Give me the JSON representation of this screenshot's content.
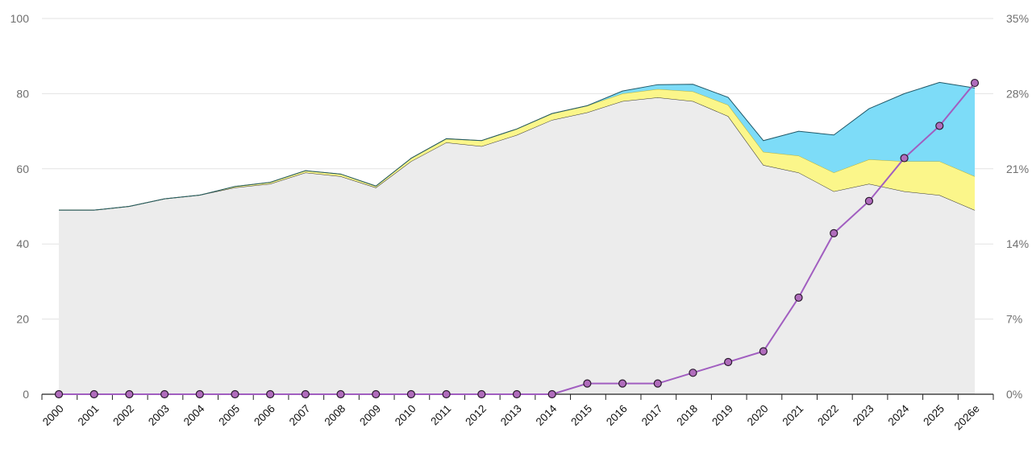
{
  "chart_data": {
    "type": "area",
    "categories": [
      "2000",
      "2001",
      "2002",
      "2003",
      "2004",
      "2005",
      "2006",
      "2007",
      "2008",
      "2009",
      "2010",
      "2011",
      "2012",
      "2013",
      "2014",
      "2015",
      "2016",
      "2017",
      "2018",
      "2019",
      "2020",
      "2021",
      "2022",
      "2023",
      "2024",
      "2025",
      "2026e"
    ],
    "y_left": {
      "ticks": [
        "0",
        "20",
        "40",
        "60",
        "80",
        "100"
      ],
      "ylim": [
        0,
        100
      ]
    },
    "y_right": {
      "ticks": [
        "0%",
        "7%",
        "14%",
        "21%",
        "28%",
        "35%"
      ],
      "ylim": [
        0,
        35
      ]
    },
    "grid": true,
    "series": [
      {
        "kind": "area",
        "color": "#ececec",
        "stroke": "#333333",
        "values": [
          49,
          49,
          50,
          52,
          53,
          55,
          56,
          59,
          58,
          55,
          62,
          67,
          66,
          69,
          73,
          75,
          78,
          79,
          78,
          74,
          61,
          59,
          54,
          56,
          54,
          53,
          49
        ]
      },
      {
        "kind": "area",
        "color": "#fbf68a",
        "stroke": "#b5b13a",
        "values": [
          0,
          0,
          0,
          0,
          0,
          0.3,
          0.4,
          0.5,
          0.6,
          0.4,
          0.8,
          1,
          1.5,
          1.6,
          1.7,
          1.8,
          2,
          2.2,
          2.6,
          3,
          3.5,
          4.5,
          5,
          6.5,
          8,
          9,
          9
        ]
      },
      {
        "kind": "area",
        "color": "#7ddcf8",
        "stroke": "#1f5868",
        "values": [
          0,
          0,
          0,
          0,
          0,
          0,
          0,
          0,
          0,
          0,
          0,
          0,
          0,
          0,
          0,
          0,
          0.7,
          1.2,
          1.9,
          2,
          3,
          6.5,
          10,
          13.5,
          18,
          21,
          23.5
        ]
      },
      {
        "kind": "line",
        "axis": "right",
        "color": "#a15ec0",
        "marker_color": "#b06cbc",
        "values": [
          0,
          0,
          0,
          0,
          0,
          0,
          0,
          0,
          0,
          0,
          0,
          0,
          0,
          0,
          0,
          1,
          1,
          1,
          2,
          3,
          4,
          9,
          15,
          18,
          22,
          25,
          29
        ]
      }
    ]
  }
}
